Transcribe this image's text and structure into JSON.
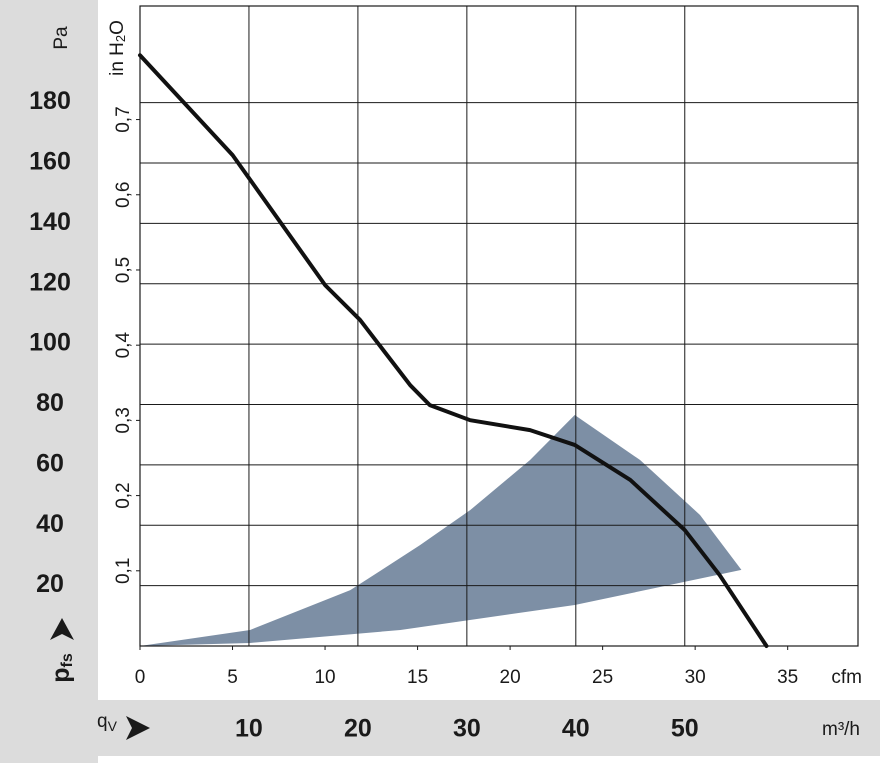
{
  "chart_data": {
    "type": "line",
    "y_label": "Pa",
    "y_label_parts": [
      "p",
      "fs"
    ],
    "x_label_parts": [
      "q",
      "V"
    ],
    "x_unit": "m³/h",
    "x2_unit": "cfm",
    "y2_label_parts": [
      "in H",
      "2",
      "O"
    ],
    "xlim": [
      0,
      65.9
    ],
    "xticks": [
      10,
      20,
      30,
      40,
      50
    ],
    "x2lim": [
      0,
      38.8
    ],
    "x2ticks": [
      0,
      5,
      10,
      15,
      20,
      25,
      30,
      35
    ],
    "ylim": [
      0,
      212
    ],
    "yticks": [
      20,
      40,
      60,
      80,
      100,
      120,
      140,
      160,
      180
    ],
    "y2lim": [
      0,
      0.851
    ],
    "y2ticks": [
      {
        "value": 0.1,
        "label": "0,1"
      },
      {
        "value": 0.2,
        "label": "0,2"
      },
      {
        "value": 0.3,
        "label": "0,3"
      },
      {
        "value": 0.4,
        "label": "0,4"
      },
      {
        "value": 0.5,
        "label": "0,5"
      },
      {
        "value": 0.6,
        "label": "0,6"
      },
      {
        "value": 0.7,
        "label": "0,7"
      }
    ],
    "grid": true,
    "series": [
      {
        "color": "#111111",
        "x": [
          0,
          8.5,
          17,
          20.2,
          24.8,
          26.6,
          30.3,
          35.8,
          39.9,
          45,
          50,
          53.2,
          57.5
        ],
        "values": [
          195.7,
          162.6,
          119.5,
          108,
          86.4,
          79.8,
          74.8,
          71.5,
          66.6,
          55,
          38.4,
          23.5,
          0
        ]
      }
    ],
    "region": {
      "color": "#7d8fa5",
      "x": [
        0,
        10.1,
        19.3,
        25.7,
        30.3,
        35.8,
        39.9,
        45.9,
        51.4,
        55.2,
        39.9,
        23.9,
        10.1
      ],
      "values": [
        0,
        5.3,
        18.5,
        33.4,
        45,
        61.6,
        76.5,
        61.6,
        43.4,
        25.2,
        13.6,
        5.3,
        1
      ]
    }
  }
}
